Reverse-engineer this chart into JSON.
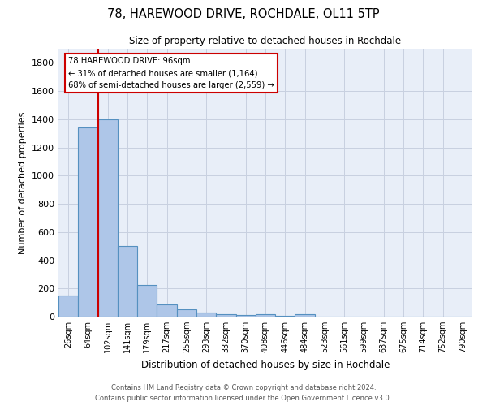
{
  "title": "78, HAREWOOD DRIVE, ROCHDALE, OL11 5TP",
  "subtitle": "Size of property relative to detached houses in Rochdale",
  "xlabel": "Distribution of detached houses by size in Rochdale",
  "ylabel": "Number of detached properties",
  "bar_labels": [
    "26sqm",
    "64sqm",
    "102sqm",
    "141sqm",
    "179sqm",
    "217sqm",
    "255sqm",
    "293sqm",
    "332sqm",
    "370sqm",
    "408sqm",
    "446sqm",
    "484sqm",
    "523sqm",
    "561sqm",
    "599sqm",
    "637sqm",
    "675sqm",
    "714sqm",
    "752sqm",
    "790sqm"
  ],
  "bar_values": [
    148,
    1340,
    1400,
    500,
    225,
    85,
    50,
    30,
    18,
    10,
    15,
    8,
    18,
    0,
    0,
    0,
    0,
    0,
    0,
    0,
    0
  ],
  "bar_color": "#aec6e8",
  "bar_edge_color": "#5590c0",
  "background_color": "#e8eef8",
  "grid_color": "#c8d0e0",
  "property_label": "78 HAREWOOD DRIVE: 96sqm",
  "annotation_line1": "← 31% of detached houses are smaller (1,164)",
  "annotation_line2": "68% of semi-detached houses are larger (2,559) →",
  "annotation_box_color": "#ffffff",
  "annotation_box_edge": "#cc0000",
  "footer_line1": "Contains HM Land Registry data © Crown copyright and database right 2024.",
  "footer_line2": "Contains public sector information licensed under the Open Government Licence v3.0.",
  "ylim": [
    0,
    1900
  ],
  "yticks": [
    0,
    200,
    400,
    600,
    800,
    1000,
    1200,
    1400,
    1600,
    1800
  ],
  "red_line_x": 1.5
}
